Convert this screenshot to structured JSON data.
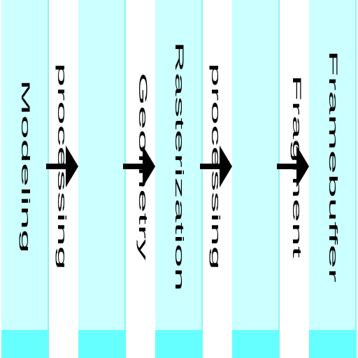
{
  "pipeline": {
    "stages": [
      {
        "lines": [
          "Modeling"
        ]
      },
      {
        "lines": [
          "Geometry",
          "processing"
        ]
      },
      {
        "lines": [
          "Rasterization"
        ]
      },
      {
        "lines": [
          "Fragment",
          "processing"
        ]
      },
      {
        "lines": [
          "Framebuffer"
        ]
      }
    ],
    "arrow_icon": "right-arrow-icon",
    "colors": {
      "stage_fill": "#ccffff",
      "stage_base": "#66ffff",
      "stage_edge": "#8ff4f4",
      "arrow": "#000000"
    }
  }
}
